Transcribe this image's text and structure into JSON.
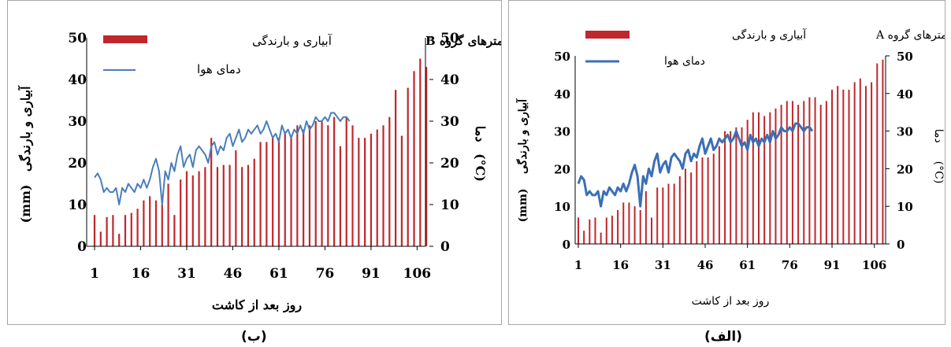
{
  "charts": [
    {
      "caption": "(ب)",
      "title": "لایسیمترهای گروه B",
      "legend_bars": "آبیاری و بارندگی",
      "legend_line": "دمای هوا",
      "xlabel": "روز بعد از کاشت",
      "ylabel_left_line1": "آبیاری و بارندگی",
      "ylabel_left_line2": "(mm)",
      "ylabel_right_line1": "دما",
      "ylabel_right_line2": "(°C)"
    },
    {
      "caption": "(الف)",
      "title": "لایسیمترهای گروه A",
      "legend_bars": "آبیاری و بارندگی",
      "legend_line": "دمای هوا",
      "xlabel": "روز بعد از کاشت",
      "ylabel_left_line1": "آبیاری و بارندگی",
      "ylabel_left_line2": "(mm)",
      "ylabel_right_line1": "دما",
      "ylabel_right_line2": "(°C)"
    }
  ],
  "colors": {
    "bars": "#c0272d",
    "line_b": "#4a7ebb",
    "line_a": "#3b6fb6"
  },
  "chart_data": [
    {
      "type": "bar+line",
      "x_ticks": [
        1,
        16,
        31,
        46,
        61,
        76,
        91,
        106
      ],
      "ylim_left": [
        0,
        50
      ],
      "yticks_left": [
        0,
        10,
        20,
        30,
        40,
        50
      ],
      "ylim_right": [
        0,
        50
      ],
      "yticks_right": [
        0,
        10,
        20,
        30,
        40,
        50
      ],
      "grid": false,
      "bar_series": {
        "name": "آبیاری و بارندگی",
        "x": [
          1,
          3,
          5,
          7,
          9,
          11,
          13,
          15,
          17,
          19,
          21,
          23,
          25,
          27,
          29,
          31,
          33,
          35,
          37,
          39,
          41,
          43,
          45,
          47,
          49,
          51,
          53,
          55,
          57,
          59,
          61,
          63,
          65,
          67,
          69,
          71,
          73,
          75,
          77,
          79,
          81,
          83,
          85,
          87,
          89,
          91,
          93,
          95,
          97,
          99,
          101,
          103,
          105,
          107,
          109
        ],
        "values": [
          7.5,
          3.5,
          7,
          7.5,
          3,
          7.5,
          8,
          9,
          11,
          12,
          11,
          10,
          15,
          7.5,
          16,
          18,
          17,
          18,
          19,
          26,
          19,
          19.5,
          19.5,
          23,
          19,
          19.5,
          21,
          25,
          25,
          26,
          26,
          27,
          26.5,
          29,
          28,
          29,
          30,
          30,
          29,
          31,
          24,
          31,
          29,
          26,
          26,
          27,
          28,
          29,
          31,
          37.5,
          26.5,
          38,
          42,
          45,
          43
        ]
      },
      "line_series": {
        "name": "دمای هوا",
        "x": [
          1,
          2,
          3,
          4,
          5,
          6,
          7,
          8,
          9,
          10,
          11,
          12,
          13,
          14,
          15,
          16,
          17,
          18,
          19,
          20,
          21,
          22,
          23,
          24,
          25,
          26,
          27,
          28,
          29,
          30,
          31,
          32,
          33,
          34,
          35,
          36,
          37,
          38,
          39,
          40,
          41,
          42,
          43,
          44,
          45,
          46,
          47,
          48,
          49,
          50,
          51,
          52,
          53,
          54,
          55,
          56,
          57,
          58,
          59,
          60,
          61,
          62,
          63,
          64,
          65,
          66,
          67,
          68,
          69,
          70,
          71,
          72,
          73,
          74,
          75,
          76,
          77,
          78,
          79,
          80,
          81,
          82,
          83,
          84
        ],
        "values": [
          16.5,
          17.5,
          16,
          13,
          14,
          13,
          13,
          14,
          10,
          14,
          13,
          15,
          14,
          13,
          15,
          14,
          16,
          14,
          16,
          19,
          21,
          18,
          10,
          18,
          16,
          20,
          18,
          22,
          24,
          19,
          21,
          22,
          19,
          23,
          24,
          23,
          22,
          20,
          24,
          25,
          22,
          24,
          23,
          26,
          27,
          24,
          26,
          28,
          25,
          26,
          28,
          27,
          28,
          29,
          27,
          28,
          30,
          28,
          26,
          27,
          25,
          29,
          27,
          28,
          26,
          28,
          27,
          29,
          27,
          30,
          28,
          29,
          31,
          30,
          30,
          31,
          30,
          32,
          32,
          31,
          30,
          31,
          31,
          30
        ]
      }
    },
    {
      "type": "bar+line",
      "x_ticks": [
        1,
        16,
        31,
        46,
        61,
        76,
        91,
        106
      ],
      "ylim_left": [
        0,
        50
      ],
      "yticks_left": [
        0,
        10,
        20,
        30,
        40,
        50
      ],
      "ylim_right": [
        0,
        50
      ],
      "yticks_right": [
        0,
        10,
        20,
        30,
        40,
        50
      ],
      "grid": false,
      "bar_series": {
        "name": "آبیاری و بارندگی",
        "x": [
          1,
          3,
          5,
          7,
          9,
          11,
          13,
          15,
          17,
          19,
          21,
          23,
          25,
          27,
          29,
          31,
          33,
          35,
          37,
          39,
          41,
          43,
          45,
          47,
          49,
          51,
          53,
          55,
          57,
          59,
          61,
          63,
          65,
          67,
          69,
          71,
          73,
          75,
          77,
          79,
          81,
          83,
          85,
          87,
          89,
          91,
          93,
          95,
          97,
          99,
          101,
          103,
          105,
          107,
          109
        ],
        "values": [
          7,
          3.5,
          6.5,
          7,
          3,
          7,
          7.5,
          9,
          11,
          11,
          10,
          9,
          14,
          7,
          15,
          15,
          16,
          16,
          18,
          20,
          19,
          22,
          23,
          23,
          24,
          26,
          30,
          30,
          31,
          31,
          33,
          35,
          35,
          34,
          35,
          36,
          37,
          38,
          38,
          37,
          38,
          39,
          39,
          37,
          38,
          41,
          42,
          41,
          41,
          43,
          44,
          42,
          43,
          48,
          49
        ]
      },
      "line_series": {
        "name": "دمای هوا",
        "x": [
          1,
          2,
          3,
          4,
          5,
          6,
          7,
          8,
          9,
          10,
          11,
          12,
          13,
          14,
          15,
          16,
          17,
          18,
          19,
          20,
          21,
          22,
          23,
          24,
          25,
          26,
          27,
          28,
          29,
          30,
          31,
          32,
          33,
          34,
          35,
          36,
          37,
          38,
          39,
          40,
          41,
          42,
          43,
          44,
          45,
          46,
          47,
          48,
          49,
          50,
          51,
          52,
          53,
          54,
          55,
          56,
          57,
          58,
          59,
          60,
          61,
          62,
          63,
          64,
          65,
          66,
          67,
          68,
          69,
          70,
          71,
          72,
          73,
          74,
          75,
          76,
          77,
          78,
          79,
          80,
          81,
          82,
          83,
          84
        ],
        "values": [
          16,
          18,
          17,
          13,
          14,
          13,
          13,
          14,
          10,
          14,
          13,
          15,
          14,
          13,
          15,
          14,
          16,
          14,
          16,
          19,
          21,
          18,
          10,
          18,
          16,
          20,
          18,
          22,
          24,
          19,
          21,
          22,
          19,
          23,
          24,
          23,
          22,
          20,
          24,
          25,
          22,
          24,
          23,
          26,
          28,
          24,
          26,
          28,
          25,
          26,
          28,
          27,
          28,
          29,
          27,
          28,
          30,
          28,
          26,
          27,
          25,
          29,
          27,
          28,
          26,
          28,
          27,
          29,
          27,
          30,
          28,
          29,
          31,
          30,
          30,
          31,
          30,
          32,
          32,
          31,
          30,
          31,
          31,
          30
        ]
      }
    }
  ]
}
